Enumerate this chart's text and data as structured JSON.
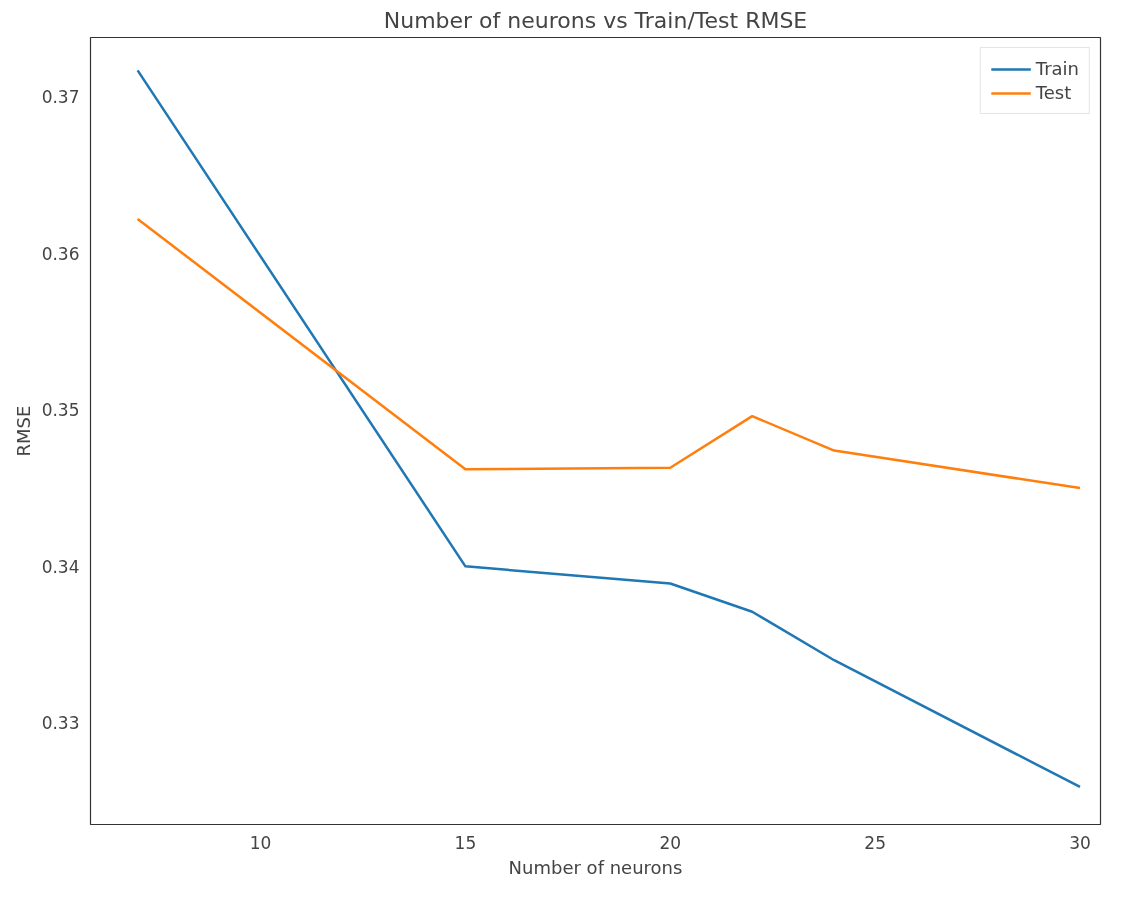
{
  "chart_data": {
    "type": "line",
    "title": "Number of neurons vs Train/Test RMSE",
    "xlabel": "Number of neurons",
    "ylabel": "RMSE",
    "x": [
      7,
      15,
      20,
      22,
      24,
      30
    ],
    "series": [
      {
        "name": "Train",
        "color": "#1f77b4",
        "values": [
          0.3717,
          0.34,
          0.3389,
          0.3371,
          0.334,
          0.3259
        ]
      },
      {
        "name": "Test",
        "color": "#ff7f0e",
        "values": [
          0.3622,
          0.3462,
          0.3463,
          0.3496,
          0.3474,
          0.345
        ]
      }
    ],
    "xlim": [
      5.85,
      30.5
    ],
    "ylim": [
      0.3235,
      0.3738
    ],
    "xticks": [
      10,
      15,
      20,
      25,
      30
    ],
    "yticks": [
      {
        "value": 0.33,
        "label": "0.33"
      },
      {
        "value": 0.34,
        "label": "0.34"
      },
      {
        "value": 0.35,
        "label": "0.35"
      },
      {
        "value": 0.36,
        "label": "0.36"
      },
      {
        "value": 0.37,
        "label": "0.37"
      }
    ],
    "grid": false,
    "legend": "top right",
    "line_style": "solid",
    "marker": "none"
  }
}
